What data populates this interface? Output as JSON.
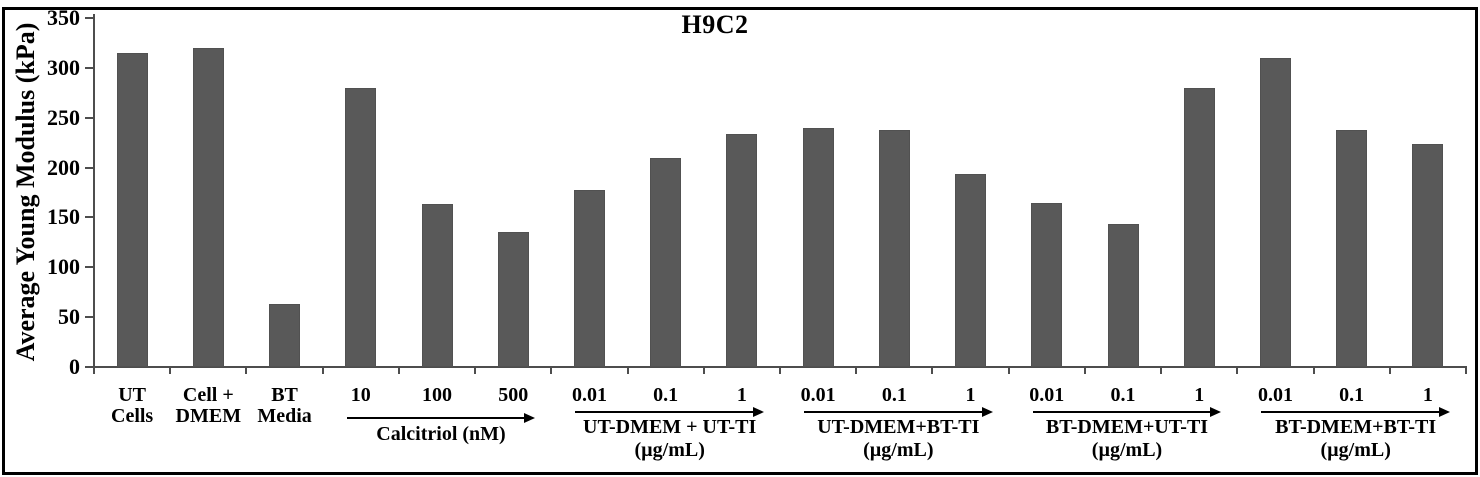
{
  "chart_data": {
    "type": "bar",
    "title": "H9C2",
    "ylabel": "Average Young Modulus (kPa)",
    "ylim": [
      0,
      350
    ],
    "ytick_interval": 50,
    "yticks": [
      0,
      50,
      100,
      150,
      200,
      250,
      300,
      350
    ],
    "grid": false,
    "legend": "none",
    "bar_color": "#595959",
    "axis_color": "#4d4d4d",
    "text_color": "#000000",
    "categories": [
      [
        "UT",
        "Cells"
      ],
      [
        "Cell +",
        "DMEM"
      ],
      [
        "BT",
        "Media"
      ],
      [
        "10"
      ],
      [
        "100"
      ],
      [
        "500"
      ],
      [
        "0.01"
      ],
      [
        "0.1"
      ],
      [
        "1"
      ],
      [
        "0.01"
      ],
      [
        "0.1"
      ],
      [
        "1"
      ],
      [
        "0.01"
      ],
      [
        "0.1"
      ],
      [
        "1"
      ],
      [
        "0.01"
      ],
      [
        "0.1"
      ],
      [
        "1"
      ]
    ],
    "values": [
      315,
      320,
      63,
      280,
      163,
      135,
      178,
      210,
      234,
      240,
      238,
      194,
      164,
      143,
      280,
      310,
      238,
      224
    ],
    "groups": [
      {
        "label": "Calcitriol (nM)",
        "unit": "",
        "start": 3,
        "end": 5
      },
      {
        "label": "UT-DMEM + UT-TI",
        "unit": "(µg/mL)",
        "start": 6,
        "end": 8
      },
      {
        "label": "UT-DMEM+BT-TI",
        "unit": "(µg/mL)",
        "start": 9,
        "end": 11
      },
      {
        "label": "BT-DMEM+UT-TI",
        "unit": "(µg/mL)",
        "start": 12,
        "end": 14
      },
      {
        "label": "BT-DMEM+BT-TI",
        "unit": "(µg/mL)",
        "start": 15,
        "end": 17
      }
    ]
  }
}
